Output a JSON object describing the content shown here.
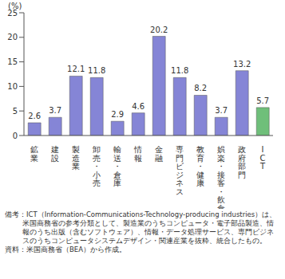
{
  "chart_data": {
    "type": "bar",
    "y_label": "(%)",
    "categories": [
      "鉱業",
      "建設",
      "製造業",
      "卸売・小売",
      "輸送・倉庫",
      "情報",
      "金融",
      "専門ビジネス",
      "教育・健康",
      "娯楽・接客・飲食",
      "政府部門",
      "ICT"
    ],
    "values": [
      2.6,
      3.7,
      12.1,
      11.8,
      2.9,
      4.6,
      20.2,
      11.8,
      8.2,
      3.7,
      13.2,
      5.7
    ],
    "colors": [
      "#8585d6",
      "#8585d6",
      "#8585d6",
      "#8585d6",
      "#8585d6",
      "#8585d6",
      "#8585d6",
      "#8585d6",
      "#8585d6",
      "#8585d6",
      "#8585d6",
      "#6fbf7a"
    ],
    "ylim": [
      0,
      25
    ],
    "yticks": [
      0,
      5,
      10,
      15,
      20,
      25
    ],
    "grid": false,
    "data_labels": true,
    "annotations": [
      "備考：ICT（Information-Communications-Technology-producing industries）は、米国商務省の参考分類として、製造業のうちコンピュータ・電子部品製造、情報のうち出版（含むソフトウェア）、情報・データ処理サービス、専門ビジネスのうちコンピュータシステムデザイン・関連産業を抜粋、統合したもの。",
      "資料：米国商務省（BEA）から作成。"
    ]
  }
}
